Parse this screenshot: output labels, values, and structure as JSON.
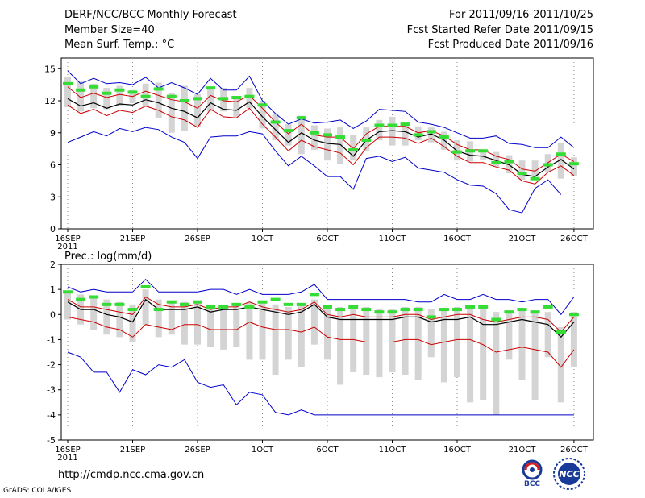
{
  "header": {
    "title": "DERF/NCC/BCC Monthly Forecast",
    "member_size": "Member Size=40",
    "variable": "Mean Surf. Temp.: °C",
    "period": "For 2011/09/16-2011/10/25",
    "refer_date": "Fcst Started Refer Date 2011/09/15",
    "produced_date": "Fcst Produced Date 2011/09/16"
  },
  "footer": {
    "url": "http://cmdp.ncc.cma.gov.cn",
    "credit": "GrADS: COLA/IGES",
    "logo_bcc": "BCC",
    "logo_ncc": "NCC"
  },
  "colors": {
    "max_min": "#0000cc",
    "percentile": "#cc0000",
    "mean": "#000000",
    "box": "#d4d4d4",
    "median": "#33dd33"
  },
  "chart_data": [
    {
      "type": "line",
      "title": "Mean Surf. Temp.: °C",
      "ylim": [
        0,
        16
      ],
      "yticks": [
        0,
        3,
        6,
        9,
        12,
        15
      ],
      "xticks": [
        {
          "day": 0,
          "label": "16SEP",
          "sub": "2011"
        },
        {
          "day": 5,
          "label": "21SEP"
        },
        {
          "day": 10,
          "label": "26SEP"
        },
        {
          "day": 15,
          "label": "1OCT"
        },
        {
          "day": 20,
          "label": "6OCT"
        },
        {
          "day": 25,
          "label": "11OCT"
        },
        {
          "day": 30,
          "label": "16OCT"
        },
        {
          "day": 35,
          "label": "21OCT"
        },
        {
          "day": 39,
          "label": "26OCT"
        }
      ],
      "series": [
        {
          "name": "max",
          "values": [
            14.8,
            13.6,
            14.1,
            13.6,
            13.7,
            13.5,
            14.2,
            13.2,
            13.7,
            13.2,
            12.6,
            14.1,
            13.0,
            13.0,
            14.3,
            12.0,
            10.8,
            9.8,
            10.3,
            9.9,
            10.0,
            10.2,
            9.4,
            10.1,
            11.2,
            11.1,
            11.0,
            10.0,
            9.8,
            9.5,
            9.0,
            8.5,
            8.5,
            8.7,
            8.0,
            7.9,
            7.6,
            7.6,
            8.6,
            7.6
          ]
        },
        {
          "name": "p_upper",
          "values": [
            13.3,
            12.3,
            12.7,
            12.3,
            12.6,
            12.4,
            12.9,
            12.5,
            12.1,
            11.9,
            11.3,
            12.5,
            12.0,
            11.9,
            12.5,
            11.3,
            10.0,
            8.9,
            9.8,
            8.8,
            8.6,
            8.6,
            7.5,
            8.9,
            9.6,
            9.6,
            9.6,
            9.0,
            9.2,
            8.7,
            7.9,
            7.4,
            7.4,
            6.8,
            6.5,
            5.6,
            5.4,
            6.2,
            7.0,
            6.3
          ]
        },
        {
          "name": "mean",
          "values": [
            12.2,
            11.5,
            11.8,
            11.3,
            11.7,
            11.6,
            12.1,
            11.8,
            11.3,
            11.0,
            10.4,
            11.8,
            11.2,
            11.1,
            11.9,
            10.5,
            9.3,
            8.1,
            9.0,
            8.3,
            8.0,
            7.9,
            6.8,
            8.3,
            9.1,
            9.2,
            9.1,
            8.6,
            8.9,
            8.3,
            7.3,
            6.9,
            6.8,
            6.4,
            6.0,
            5.1,
            4.9,
            5.8,
            6.5,
            5.6
          ]
        },
        {
          "name": "p_lower",
          "values": [
            11.6,
            10.8,
            11.2,
            10.6,
            11.1,
            10.9,
            11.5,
            11.1,
            10.5,
            10.2,
            9.5,
            11.2,
            10.5,
            10.4,
            11.3,
            9.8,
            8.6,
            7.3,
            8.3,
            7.7,
            7.4,
            7.1,
            6.0,
            7.6,
            8.6,
            8.6,
            8.5,
            8.0,
            8.5,
            7.7,
            6.8,
            6.2,
            6.2,
            5.8,
            5.5,
            4.5,
            4.2,
            5.3,
            5.9,
            5.0
          ]
        },
        {
          "name": "min",
          "values": [
            8.1,
            8.6,
            9.1,
            8.7,
            9.4,
            9.1,
            9.5,
            9.3,
            8.6,
            8.1,
            6.6,
            8.6,
            8.7,
            8.7,
            9.1,
            8.9,
            7.3,
            5.9,
            6.8,
            5.9,
            4.9,
            4.9,
            3.7,
            6.6,
            6.8,
            6.3,
            6.7,
            5.7,
            5.5,
            5.3,
            4.6,
            4.1,
            4.0,
            3.3,
            1.8,
            1.5,
            3.8,
            4.6,
            3.2,
            null
          ]
        },
        {
          "name": "box_top",
          "values": [
            14.2,
            13.8,
            13.6,
            13.2,
            13.4,
            13.0,
            13.6,
            13.7,
            12.7,
            13.4,
            12.6,
            13.1,
            13.2,
            12.4,
            13.2,
            12.0,
            10.8,
            9.8,
            10.6,
            9.7,
            9.4,
            9.5,
            8.8,
            9.5,
            10.2,
            10.5,
            10.0,
            9.6,
            9.5,
            9.1,
            8.3,
            8.2,
            7.4,
            7.2,
            6.9,
            6.4,
            6.4,
            7.0,
            8.0,
            6.7
          ]
        },
        {
          "name": "box_bottom",
          "values": [
            11.4,
            11.0,
            11.3,
            11.2,
            11.5,
            11.8,
            11.5,
            10.4,
            9.0,
            9.2,
            9.6,
            11.0,
            11.0,
            10.5,
            11.3,
            9.4,
            8.3,
            7.8,
            7.0,
            7.4,
            6.4,
            6.1,
            6.4,
            7.3,
            8.3,
            7.8,
            7.8,
            8.3,
            8.1,
            7.4,
            6.4,
            6.3,
            6.5,
            5.8,
            5.2,
            4.6,
            5.0,
            5.3,
            4.7,
            4.9
          ]
        },
        {
          "name": "median",
          "values": [
            13.6,
            13.0,
            13.3,
            12.7,
            13.0,
            12.8,
            12.4,
            13.1,
            12.4,
            12.0,
            12.2,
            13.2,
            12.2,
            12.3,
            12.4,
            11.6,
            10.0,
            9.2,
            10.4,
            9.0,
            8.8,
            8.6,
            7.4,
            8.3,
            9.7,
            9.7,
            9.8,
            8.8,
            9.1,
            8.6,
            7.2,
            7.3,
            7.3,
            6.2,
            6.3,
            5.2,
            4.7,
            6.0,
            7.0,
            6.1
          ]
        }
      ]
    },
    {
      "type": "line",
      "title": "Prec.: log(mm/d)",
      "ylim": [
        -5,
        2
      ],
      "yticks": [
        -5,
        -4,
        -3,
        -2,
        -1,
        0,
        1,
        2
      ],
      "xticks": [
        {
          "day": 0,
          "label": "16SEP",
          "sub": "2011"
        },
        {
          "day": 5,
          "label": "21SEP"
        },
        {
          "day": 10,
          "label": "26SEP"
        },
        {
          "day": 15,
          "label": "1OCT"
        },
        {
          "day": 20,
          "label": "6OCT"
        },
        {
          "day": 25,
          "label": "11OCT"
        },
        {
          "day": 30,
          "label": "16OCT"
        },
        {
          "day": 35,
          "label": "21OCT"
        },
        {
          "day": 39,
          "label": "26OCT"
        }
      ],
      "series": [
        {
          "name": "max",
          "values": [
            1.1,
            0.9,
            1.0,
            0.9,
            0.9,
            0.9,
            1.4,
            0.9,
            0.9,
            0.9,
            0.9,
            1.0,
            1.0,
            0.8,
            1.0,
            0.8,
            0.8,
            0.8,
            0.9,
            1.2,
            0.6,
            0.6,
            0.6,
            0.6,
            0.6,
            0.6,
            0.6,
            0.5,
            0.5,
            0.8,
            0.6,
            0.6,
            0.8,
            0.6,
            0.6,
            0.5,
            0.6,
            0.6,
            0.0,
            0.7
          ]
        },
        {
          "name": "p_upper",
          "values": [
            0.6,
            0.3,
            0.3,
            0.2,
            0.1,
            0.0,
            0.7,
            0.4,
            0.3,
            0.3,
            0.4,
            0.2,
            0.3,
            0.3,
            0.5,
            0.3,
            0.2,
            0.1,
            0.2,
            0.5,
            0.0,
            -0.1,
            0.0,
            -0.1,
            -0.1,
            -0.1,
            0.0,
            0.0,
            -0.2,
            -0.1,
            0.0,
            0.0,
            -0.2,
            -0.3,
            -0.2,
            -0.1,
            -0.1,
            -0.2,
            -0.7,
            -0.1
          ]
        },
        {
          "name": "mean",
          "values": [
            0.5,
            0.2,
            0.2,
            0.0,
            -0.1,
            -0.3,
            0.6,
            0.2,
            0.2,
            0.2,
            0.3,
            0.1,
            0.2,
            0.2,
            0.3,
            0.2,
            0.1,
            0.0,
            0.1,
            0.4,
            -0.1,
            -0.2,
            -0.2,
            -0.2,
            -0.2,
            -0.2,
            -0.1,
            -0.1,
            -0.3,
            -0.2,
            -0.2,
            -0.1,
            -0.4,
            -0.4,
            -0.3,
            -0.2,
            -0.3,
            -0.4,
            -0.9,
            -0.3
          ]
        },
        {
          "name": "p_lower",
          "values": [
            -0.1,
            -0.2,
            -0.3,
            -0.5,
            -0.6,
            -0.9,
            -0.4,
            -0.5,
            -0.6,
            -0.4,
            -0.4,
            -0.6,
            -0.6,
            -0.6,
            -0.3,
            -0.5,
            -0.6,
            -0.6,
            -0.7,
            -0.5,
            -0.9,
            -1.0,
            -1.0,
            -1.1,
            -1.1,
            -1.1,
            -1.0,
            -1.0,
            -1.2,
            -1.1,
            -1.0,
            -1.0,
            -1.2,
            -1.5,
            -1.4,
            -1.3,
            -1.4,
            -1.5,
            -2.1,
            -1.4
          ]
        },
        {
          "name": "min",
          "values": [
            -1.5,
            -1.7,
            -2.3,
            -2.3,
            -3.1,
            -2.2,
            -2.4,
            -2.0,
            -2.1,
            -1.8,
            -2.7,
            -2.9,
            -2.8,
            -3.6,
            -3.1,
            -3.2,
            -3.9,
            -4.0,
            -3.8,
            -4.0,
            -4.0,
            -4.0,
            -4.0,
            -4.0,
            -4.0,
            -4.0,
            -4.0,
            -4.0,
            -4.0,
            -4.0,
            -4.0,
            -4.0,
            -4.0,
            -4.0,
            -4.0,
            -4.0,
            -4.0,
            -4.0,
            -4.0,
            -4.0
          ]
        },
        {
          "name": "box_top",
          "values": [
            0.9,
            0.8,
            0.7,
            0.6,
            0.5,
            0.4,
            1.0,
            0.6,
            0.5,
            0.5,
            0.5,
            0.4,
            0.4,
            0.4,
            0.5,
            0.5,
            0.4,
            0.3,
            0.4,
            0.6,
            0.2,
            0.3,
            0.2,
            0.3,
            0.2,
            0.2,
            0.3,
            0.3,
            0.2,
            0.2,
            0.3,
            0.3,
            0.2,
            0.1,
            0.1,
            0.2,
            0.1,
            0.1,
            -0.5,
            0.1
          ]
        },
        {
          "name": "box_bottom",
          "values": [
            -0.2,
            -0.4,
            -0.6,
            -0.8,
            -0.9,
            -1.1,
            -0.4,
            -0.9,
            -0.8,
            -1.2,
            -1.2,
            -1.3,
            -1.4,
            -1.3,
            -1.8,
            -1.8,
            -2.4,
            -1.8,
            -2.1,
            -1.2,
            -1.8,
            -2.8,
            -2.3,
            -2.4,
            -2.5,
            -2.3,
            -2.4,
            -2.6,
            -1.7,
            -2.7,
            -2.5,
            -3.5,
            -3.4,
            -4.0,
            -1.8,
            -2.6,
            -3.4,
            -1.7,
            -3.5,
            -2.1
          ]
        },
        {
          "name": "median",
          "values": [
            0.9,
            0.6,
            0.7,
            0.4,
            0.4,
            0.2,
            1.1,
            0.2,
            0.5,
            0.4,
            0.5,
            0.3,
            0.3,
            0.4,
            0.3,
            0.5,
            0.6,
            0.4,
            0.4,
            0.8,
            0.3,
            0.2,
            0.3,
            0.2,
            0.1,
            0.1,
            0.2,
            0.2,
            -0.1,
            0.2,
            0.2,
            0.3,
            0.3,
            -0.2,
            0.1,
            0.2,
            0.1,
            0.3,
            -0.7,
            0.0
          ]
        }
      ]
    }
  ]
}
